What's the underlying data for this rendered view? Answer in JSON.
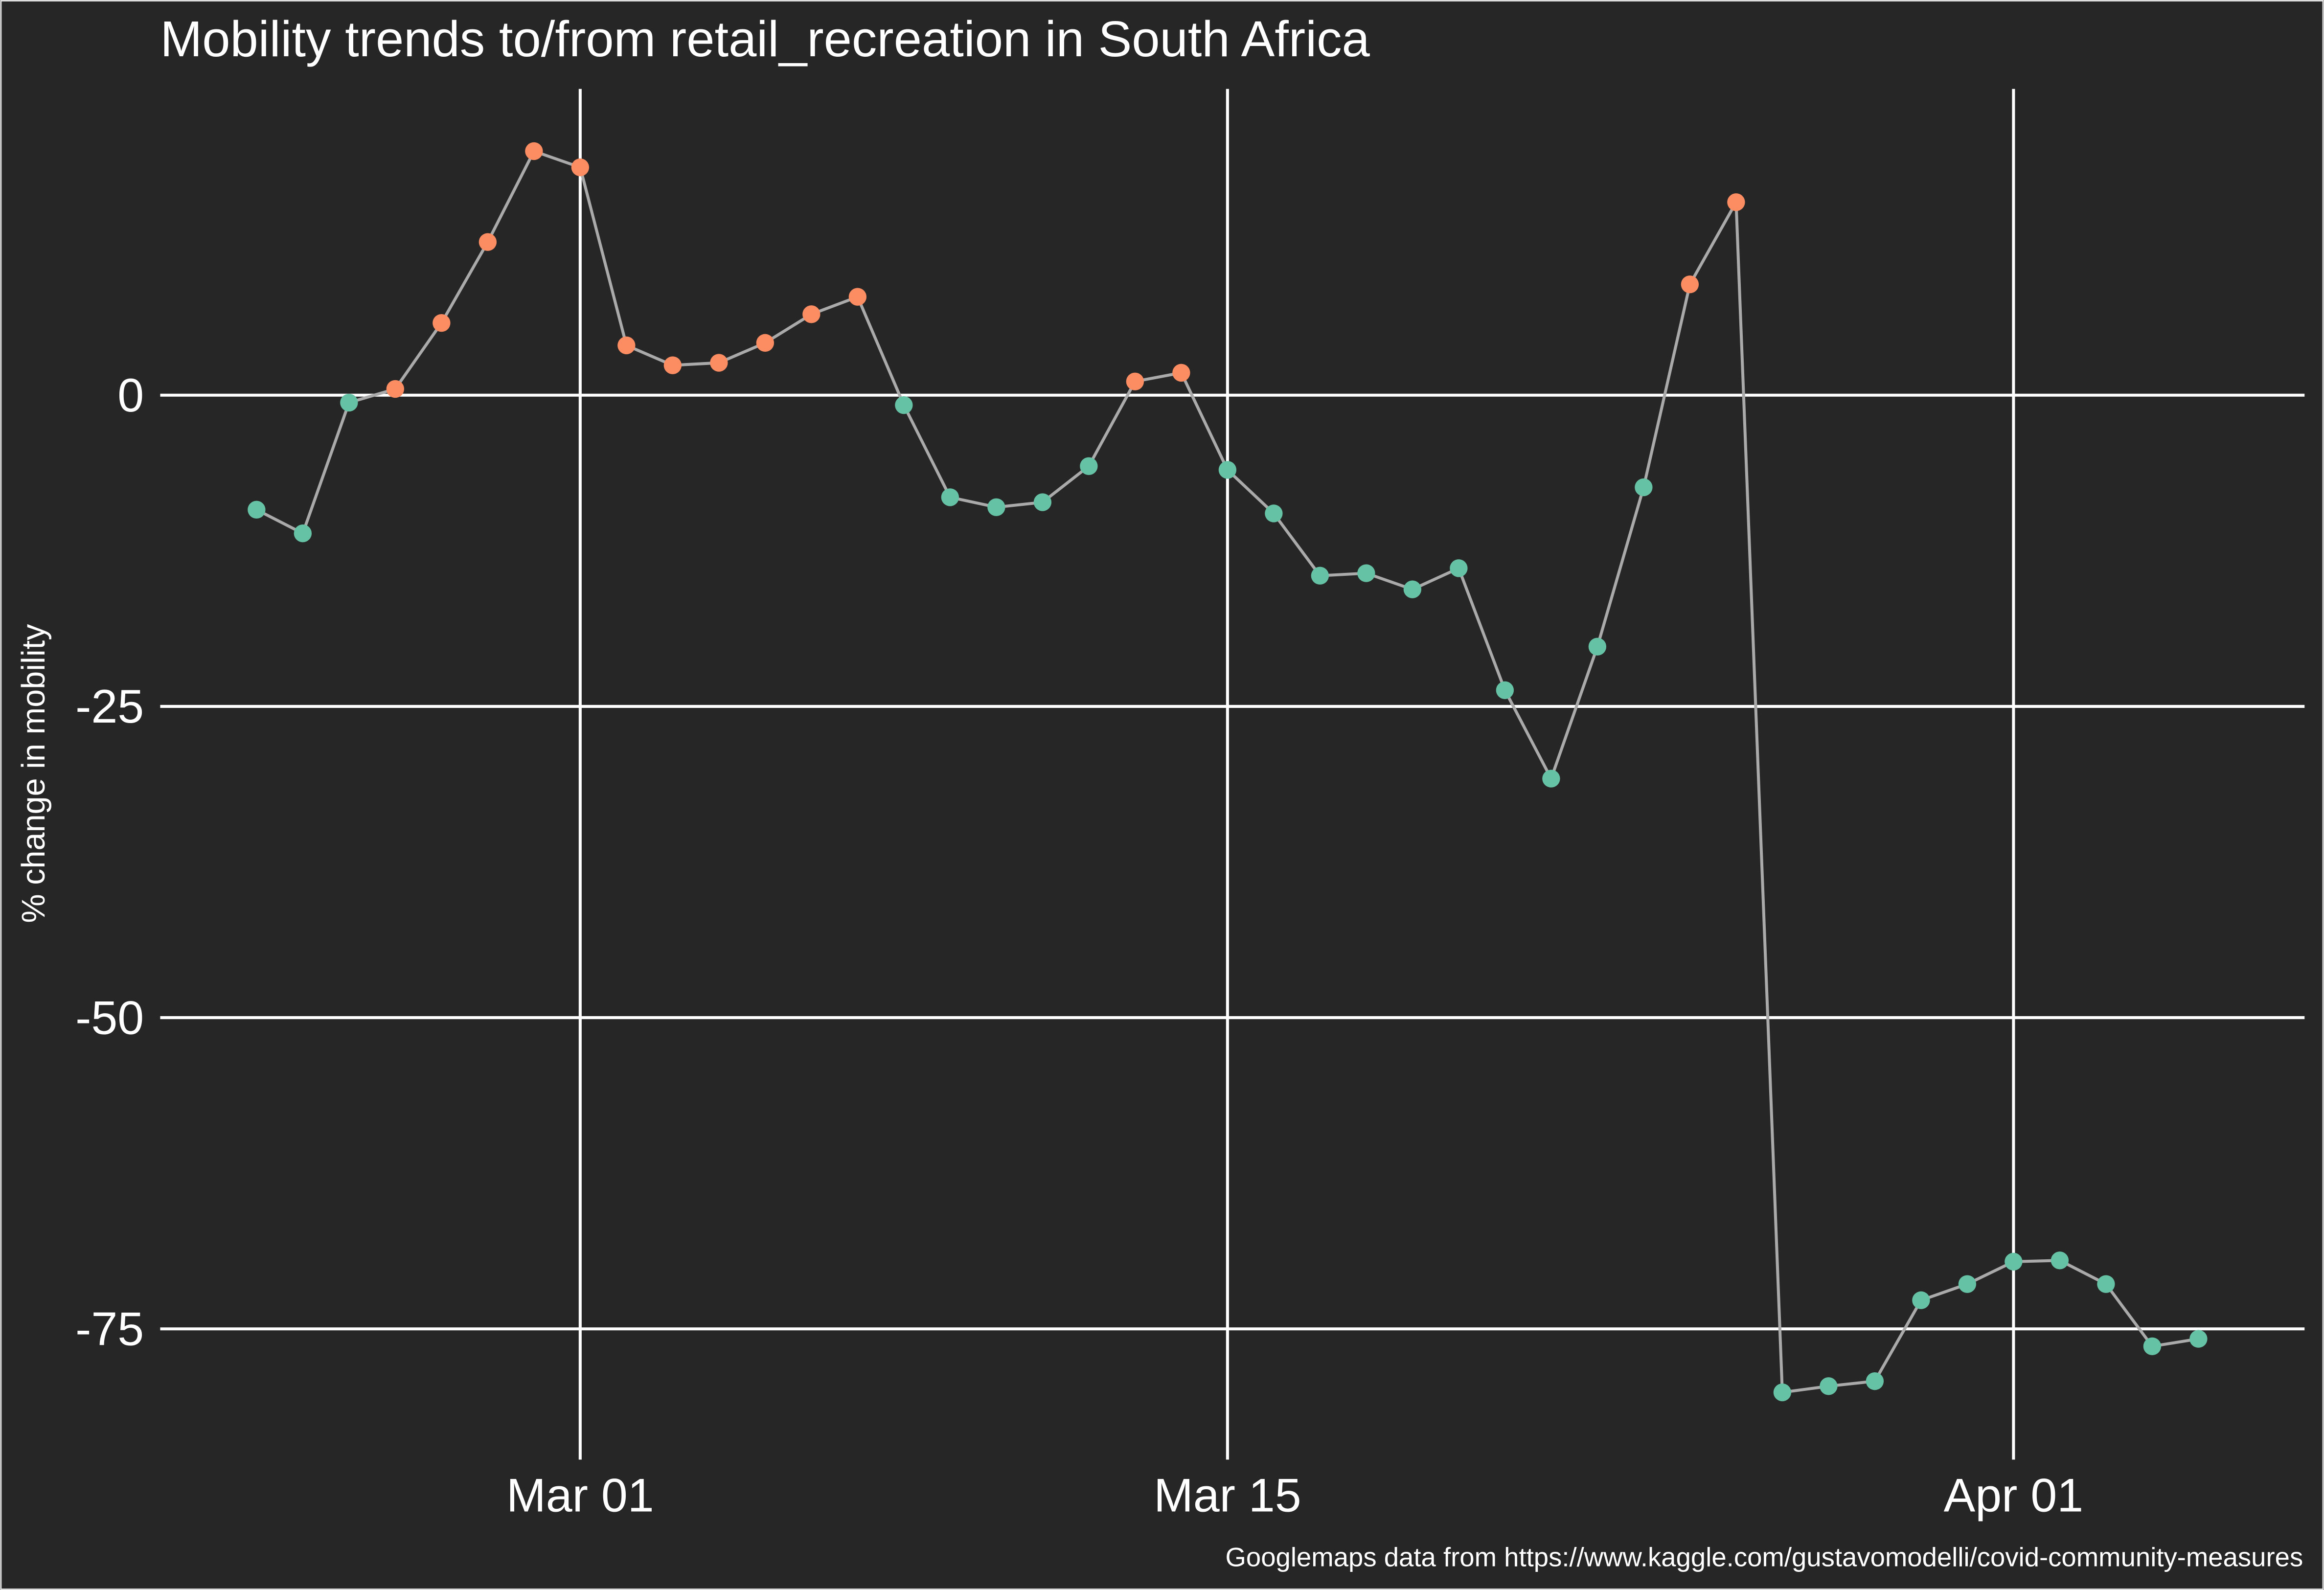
{
  "chart_data": {
    "type": "line",
    "title": "Mobility trends to/from retail_recreation in South Africa",
    "y_label": "% change in mobility",
    "caption": "Googlemaps data from https://www.kaggle.com/gustavomodelli/covid-community-measures",
    "x": [
      "Feb 23",
      "Feb 24",
      "Feb 25",
      "Feb 26",
      "Feb 27",
      "Feb 28",
      "Feb 29",
      "Mar 01",
      "Mar 02",
      "Mar 03",
      "Mar 04",
      "Mar 05",
      "Mar 06",
      "Mar 07",
      "Mar 08",
      "Mar 09",
      "Mar 10",
      "Mar 11",
      "Mar 12",
      "Mar 13",
      "Mar 14",
      "Mar 15",
      "Mar 16",
      "Mar 17",
      "Mar 18",
      "Mar 19",
      "Mar 20",
      "Mar 21",
      "Mar 22",
      "Mar 23",
      "Mar 24",
      "Mar 25",
      "Mar 26",
      "Mar 27",
      "Mar 28",
      "Mar 29",
      "Mar 30",
      "Mar 31",
      "Apr 01",
      "Apr 02",
      "Apr 03",
      "Apr 04",
      "Apr 05"
    ],
    "values": [
      -9.2,
      -11.1,
      -0.6,
      0.5,
      5.8,
      12.3,
      19.6,
      18.3,
      4.0,
      2.4,
      2.6,
      4.2,
      6.5,
      7.9,
      -0.8,
      -8.2,
      -9.0,
      -8.6,
      -5.7,
      1.1,
      1.8,
      -6.0,
      -9.5,
      -14.5,
      -14.3,
      -15.6,
      -13.9,
      -23.7,
      -30.8,
      -20.2,
      -7.4,
      8.9,
      15.5,
      -80.1,
      -79.6,
      -79.2,
      -72.7,
      -71.4,
      -69.6,
      -69.5,
      -71.4,
      -76.4,
      -75.8
    ],
    "xticks": [
      "Mar 01",
      "Mar 15",
      "Apr 01"
    ],
    "ylim": [
      -85.5,
      24.6
    ],
    "yticks": [
      -75,
      -50,
      -25,
      0
    ],
    "grid": true,
    "line_color": "#aaaaaa",
    "positive_color": "#fc8d62",
    "negative_color": "#66c2a5",
    "background": "#262626"
  }
}
